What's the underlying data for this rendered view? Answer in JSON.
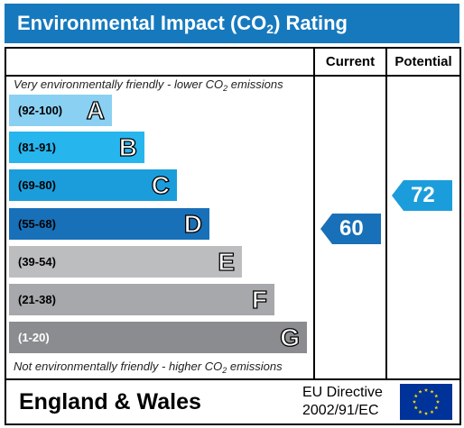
{
  "title": {
    "main": "Environmental Impact (CO",
    "sub": "2",
    "tail": ") Rating"
  },
  "columns": {
    "current": "Current",
    "potential": "Potential"
  },
  "notes": {
    "top": {
      "before": "Very environmentally friendly - lower CO",
      "sub": "2",
      "after": " emissions"
    },
    "bottom": {
      "before": "Not environmentally friendly - higher CO",
      "sub": "2",
      "after": " emissions"
    }
  },
  "bands": [
    {
      "range": "(92-100)",
      "letter": "A",
      "color": "#8ad0f2"
    },
    {
      "range": "(81-91)",
      "letter": "B",
      "color": "#27b5ed"
    },
    {
      "range": "(69-80)",
      "letter": "C",
      "color": "#1c9ddb"
    },
    {
      "range": "(55-68)",
      "letter": "D",
      "color": "#1870b8"
    },
    {
      "range": "(39-54)",
      "letter": "E",
      "color": "#bcbdbf"
    },
    {
      "range": "(21-38)",
      "letter": "F",
      "color": "#a7a8ab"
    },
    {
      "range": "(1-20)",
      "letter": "G",
      "color": "#8b8c8f"
    }
  ],
  "ratings": {
    "current": {
      "value": "60",
      "color": "#1870b8"
    },
    "potential": {
      "value": "72",
      "color": "#1c9ddb"
    }
  },
  "footer": {
    "region": "England & Wales",
    "directive_line1": "EU Directive",
    "directive_line2": "2002/91/EC",
    "flag_icon": "eu-flag-icon",
    "flag_color": "#003399",
    "star_color": "#ffdd00"
  }
}
